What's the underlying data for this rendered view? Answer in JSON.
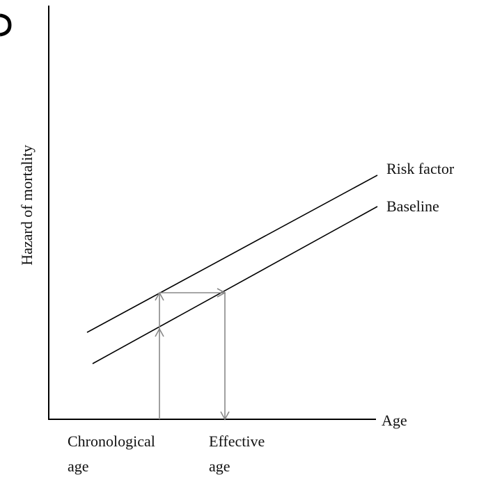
{
  "axes": {
    "y_label": "Hazard of mortality",
    "x_label": "Age"
  },
  "lines": [
    {
      "label": "Risk factor"
    },
    {
      "label": "Baseline"
    }
  ],
  "markers": [
    {
      "label_lines": [
        "Chronological",
        "age"
      ]
    },
    {
      "label_lines": [
        "Effective",
        "age"
      ]
    }
  ]
}
